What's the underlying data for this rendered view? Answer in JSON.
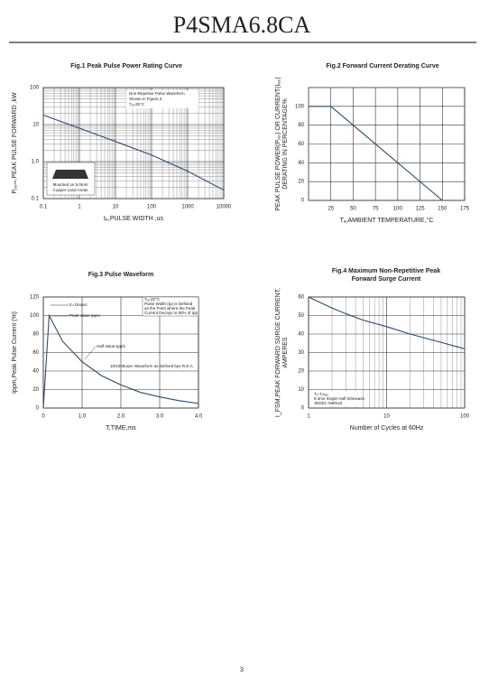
{
  "header": {
    "title": "P4SMA6.8CA"
  },
  "page_number": "3",
  "chart_data": [
    {
      "type": "line",
      "title": [
        "Fig.1  Peak Pulse Power Rating Curve"
      ],
      "ylabel": [
        "Pₚₚₘ,PEAK PULSE  FORWARD ,kW"
      ],
      "xlabel": "tₚ,PULSE WIDTH ,us",
      "xscale": "log",
      "yscale": "log",
      "grid": true,
      "xlim": [
        0.1,
        10000
      ],
      "ylim": [
        0.1,
        100
      ],
      "xticks": [
        0.1,
        1,
        10,
        100,
        1000,
        10000
      ],
      "yticks": [
        0.1,
        {
          "value": 1,
          "label": "1.0"
        },
        10,
        100
      ],
      "x": [
        0.1,
        1,
        10,
        100,
        1000,
        10000
      ],
      "values": [
        18,
        8,
        3.5,
        1.5,
        0.55,
        0.17
      ],
      "color": "#2b4a6b",
      "annotations": [
        "Non-Repetive  Pulse Waveform",
        "Shown in Figure.3",
        "Tₐ=25°C",
        "Mounted on 5.0mm",
        "Copper Land Areas"
      ]
    },
    {
      "type": "line",
      "title": [
        "Fig.2  Forward Current Derating Curve"
      ],
      "ylabel": [
        "PEAK PULSE POWER(Pₚₚ) OR CURRENT(Iₚₚ)",
        "DERATING IN PERCENTAGE%"
      ],
      "xlabel": "Tₐ,AMBIENT TEMPERATURE,°C",
      "grid": true,
      "xlim": [
        0,
        175
      ],
      "ylim": [
        0,
        120
      ],
      "xticks": [
        25,
        50,
        75,
        100,
        125,
        150,
        175
      ],
      "yticks": [
        0,
        20,
        40,
        60,
        80,
        100
      ],
      "x": [
        0,
        25,
        150
      ],
      "values": [
        100,
        100,
        0
      ],
      "color": "#2b4a6b",
      "annotations": []
    },
    {
      "type": "line",
      "title": [
        "Fig.3  Pulse Waveform"
      ],
      "ylabel": [
        "Ippm,Peak Pulse Current (%)"
      ],
      "xlabel": "T,TIME,ms",
      "grid": true,
      "xlim": [
        0,
        4
      ],
      "ylim": [
        0,
        120
      ],
      "xticks": [
        0,
        {
          "value": 1,
          "label": "1.0"
        },
        {
          "value": 2,
          "label": "2.0"
        },
        {
          "value": 3,
          "label": "3.0"
        },
        {
          "value": 4,
          "label": "4.0"
        }
      ],
      "yticks": [
        0,
        20,
        40,
        60,
        80,
        100,
        120
      ],
      "x": [
        0,
        0.15,
        0.5,
        1.0,
        1.5,
        2.0,
        2.5,
        3.0,
        3.5,
        4.0
      ],
      "values": [
        0,
        100,
        72,
        50,
        35,
        25,
        17,
        12,
        8,
        5
      ],
      "color": "#2b4a6b",
      "annotations": [
        "tr=10usec",
        "Peak  Value  Ippm",
        "Half Value-Ipp/2",
        "10/1000usec  Waveform as Defined bye R.E.A.",
        "Tₐ=25°C",
        "Pulse  Width (tp) is Defined",
        "as the Point  where the Peak",
        "Current  Decays to 50% of Ipp"
      ]
    },
    {
      "type": "line",
      "title": [
        "Fig.4  Maximum Non-Repetitive Peak",
        "Forward Surge Current"
      ],
      "ylabel": [
        "I_FSM,PEAK FORWARD SURGE CURRENT,",
        "AMPERES"
      ],
      "xlabel": "Number of Cycles at 60Hz",
      "xscale": "log",
      "grid": true,
      "xlim": [
        1,
        100
      ],
      "ylim": [
        0,
        60
      ],
      "xticks": [
        1,
        10,
        100
      ],
      "yticks": [
        0,
        10,
        20,
        30,
        40,
        50,
        60
      ],
      "x": [
        1,
        2,
        3,
        5,
        10,
        20,
        30,
        50,
        100
      ],
      "values": [
        60,
        54,
        51,
        47.5,
        44,
        40,
        38,
        35.5,
        32
      ],
      "color": "#2b4a6b",
      "annotations": [
        "Tⱼ=Tⱼₘₐₓ",
        "8.3ms Single Half  Sinewave",
        "JEDEC Method"
      ]
    }
  ]
}
